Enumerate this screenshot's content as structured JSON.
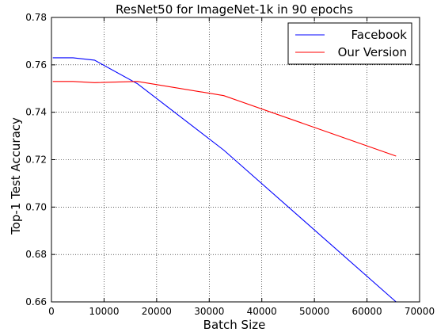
{
  "chart_data": {
    "type": "line",
    "title": "ResNet50 for ImageNet-1k in 90 epochs",
    "xlabel": "Batch Size",
    "ylabel": "Top-1 Test Accuracy",
    "xlim": [
      0,
      70000
    ],
    "ylim": [
      0.66,
      0.78
    ],
    "x_ticks": [
      0,
      10000,
      20000,
      30000,
      40000,
      50000,
      60000,
      70000
    ],
    "x_tick_labels": [
      "0",
      "10000",
      "20000",
      "30000",
      "40000",
      "50000",
      "60000",
      "70000"
    ],
    "y_ticks": [
      0.66,
      0.68,
      0.7,
      0.72,
      0.74,
      0.76,
      0.78
    ],
    "y_tick_labels": [
      "0.66",
      "0.68",
      "0.70",
      "0.72",
      "0.74",
      "0.76",
      "0.78"
    ],
    "grid": true,
    "grid_style": "dotted",
    "legend_position": "top-right",
    "series": [
      {
        "name": "Facebook",
        "color": "#0000ff",
        "x": [
          256,
          4096,
          8192,
          16384,
          32768,
          65536
        ],
        "y": [
          0.763,
          0.763,
          0.762,
          0.752,
          0.724,
          0.66
        ]
      },
      {
        "name": "Our Version",
        "color": "#ff0000",
        "x": [
          256,
          4096,
          8192,
          16384,
          32768,
          65536
        ],
        "y": [
          0.753,
          0.753,
          0.7525,
          0.753,
          0.747,
          0.7215
        ]
      }
    ]
  }
}
